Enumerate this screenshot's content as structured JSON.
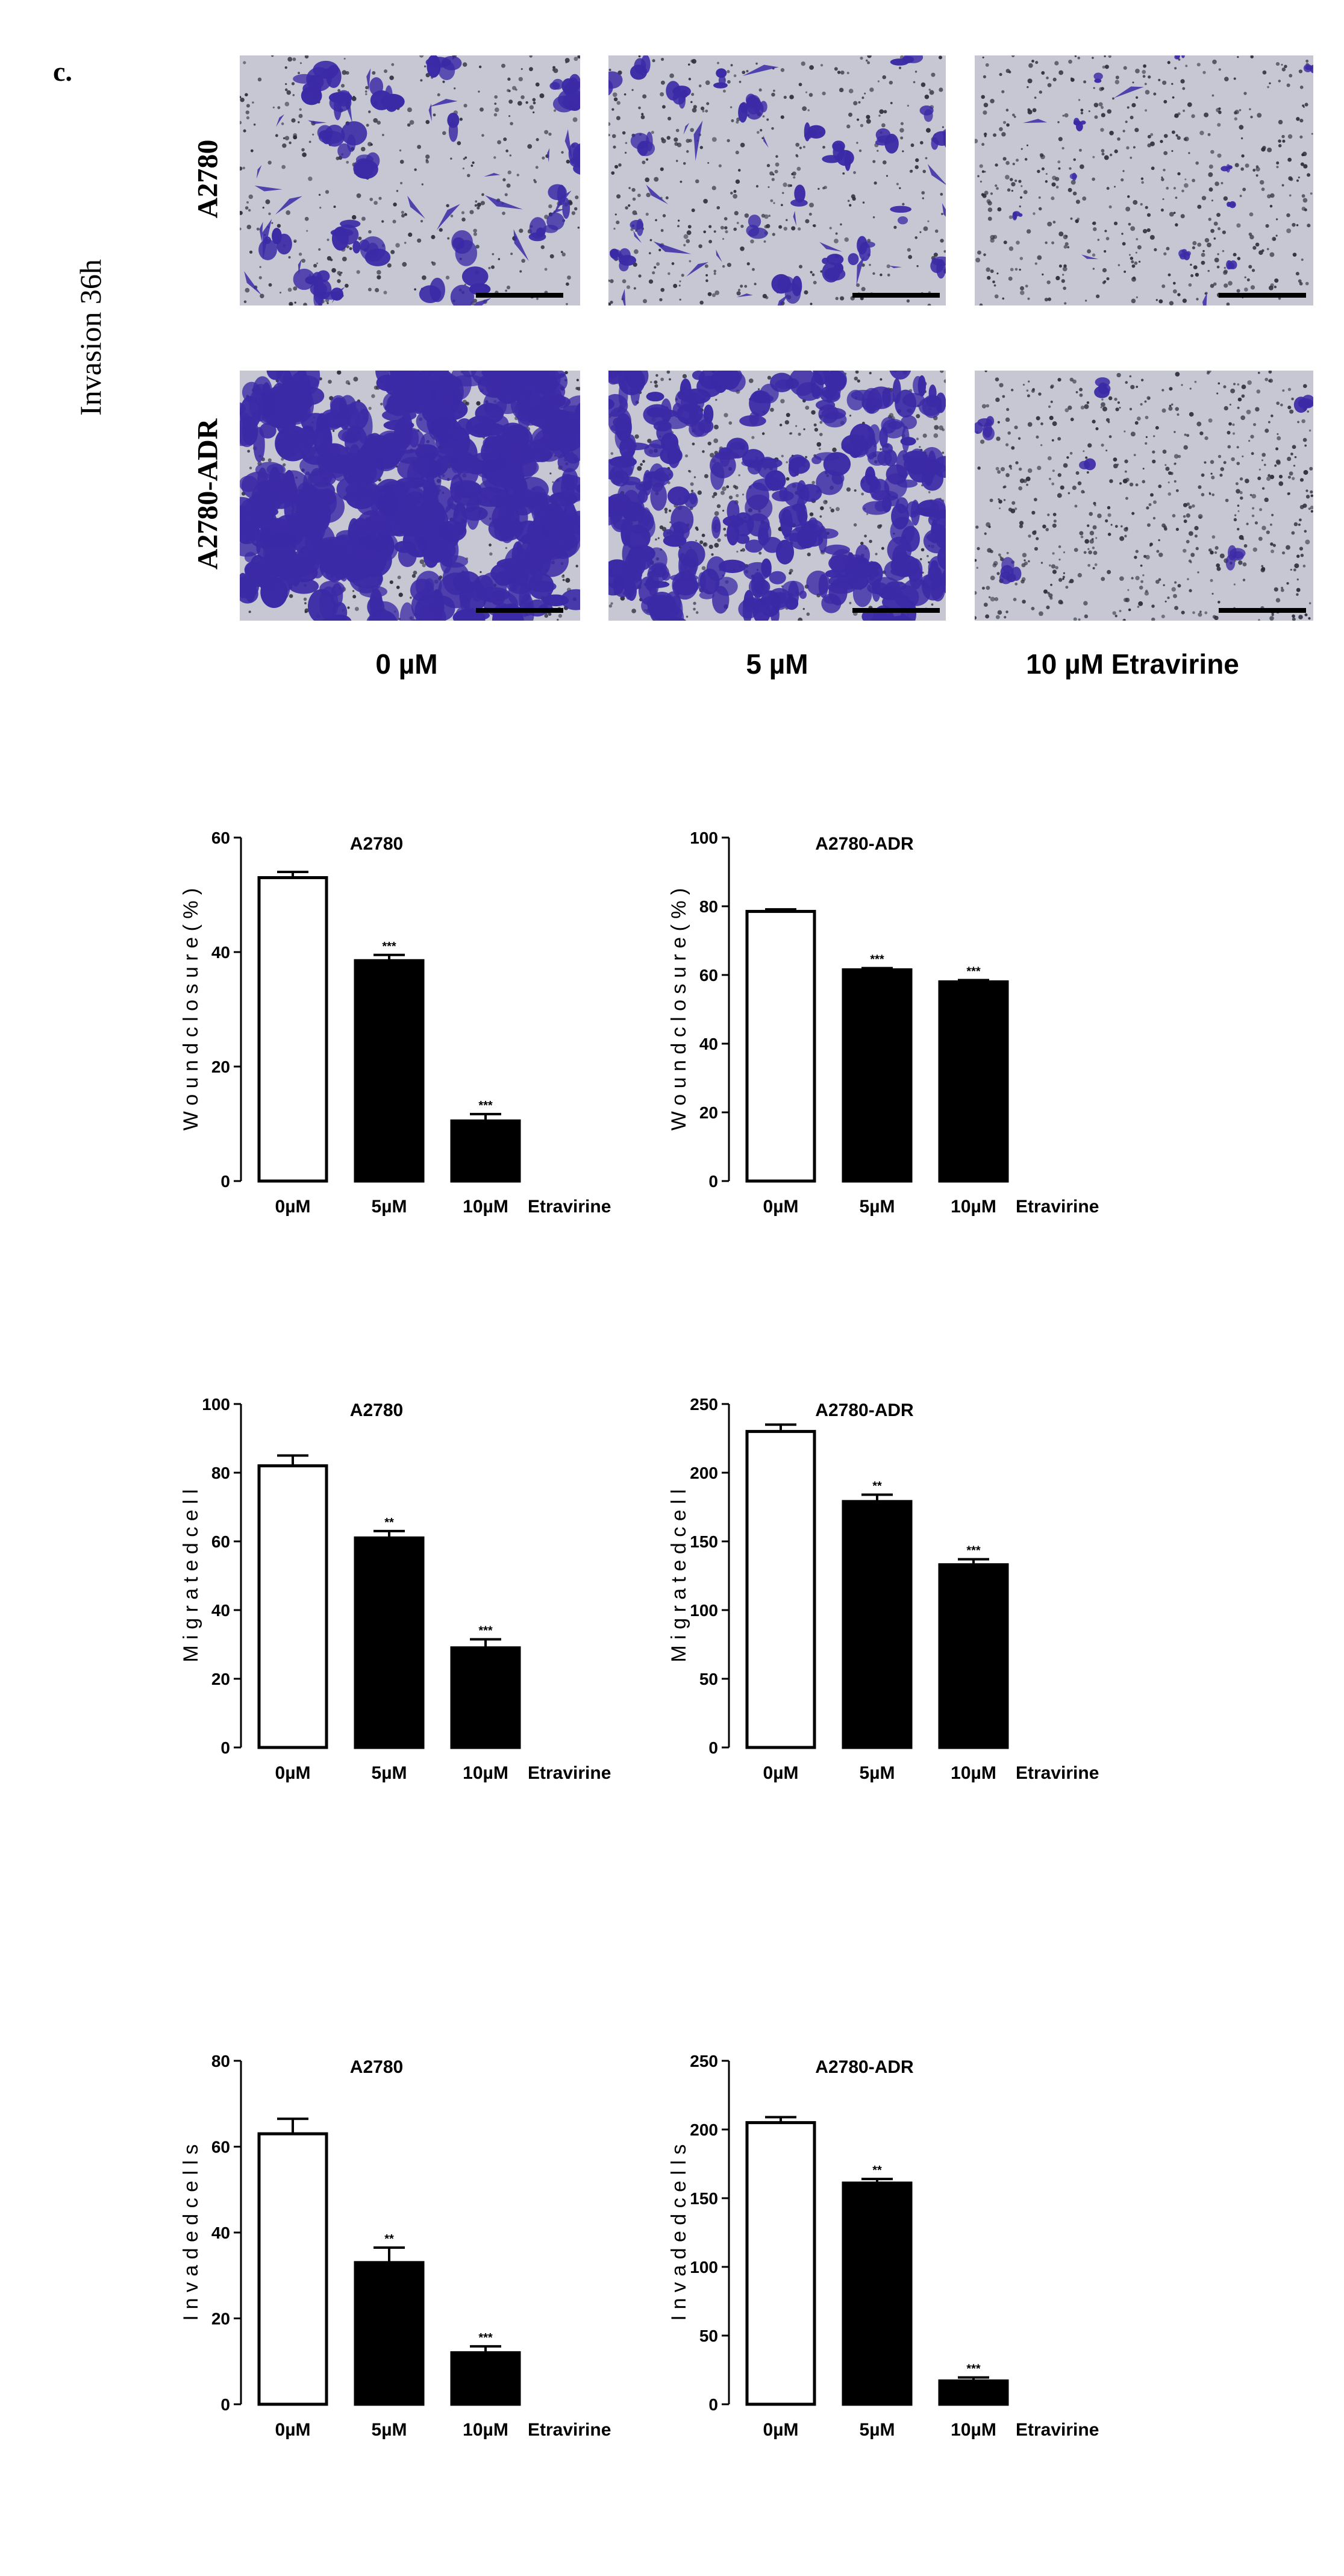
{
  "figure": {
    "panel_letter": "c.",
    "row_heading": "Invasion 36h",
    "rows": [
      {
        "label": "A2780"
      },
      {
        "label": "A2780-ADR"
      }
    ],
    "conditions": [
      {
        "label": "0 µM"
      },
      {
        "label": "5 µM"
      },
      {
        "label": "10 µM Etravirine"
      }
    ],
    "stain_color": "#3b2aa6",
    "background_color": "#c6c7d3"
  },
  "chart_data": [
    {
      "type": "bar",
      "title": "A2780",
      "ylabel": "W o u n d  c l o s u r e  ( % )",
      "xlabel": "",
      "x_suffix": "Etravirine",
      "categories": [
        "0µM",
        "5µM",
        "10µM"
      ],
      "values": [
        53,
        38.5,
        10.5
      ],
      "errors": [
        1,
        1,
        1.2
      ],
      "significance": [
        "",
        "***",
        "***"
      ],
      "bar_fills": [
        "#ffffff",
        "#000000",
        "#000000"
      ],
      "ylim": [
        0,
        60
      ],
      "yticks": [
        0,
        20,
        40,
        60
      ],
      "grid": false
    },
    {
      "type": "bar",
      "title": "A2780-ADR",
      "ylabel": "W o u n d  c l o s u r e  ( % )",
      "xlabel": "",
      "x_suffix": "Etravirine",
      "categories": [
        "0µM",
        "5µM",
        "10µM"
      ],
      "values": [
        78.5,
        61.5,
        58
      ],
      "errors": [
        0.6,
        0.5,
        0.5
      ],
      "significance": [
        "",
        "***",
        "***"
      ],
      "bar_fills": [
        "#ffffff",
        "#000000",
        "#000000"
      ],
      "ylim": [
        0,
        100
      ],
      "yticks": [
        0,
        20,
        40,
        60,
        80,
        100
      ],
      "grid": false
    },
    {
      "type": "bar",
      "title": "A2780",
      "ylabel": "M i g r a t e d  c e l l",
      "xlabel": "",
      "x_suffix": "Etravirine",
      "categories": [
        "0µM",
        "5µM",
        "10µM"
      ],
      "values": [
        82,
        61,
        29
      ],
      "errors": [
        3,
        2,
        2.5
      ],
      "significance": [
        "",
        "**",
        "***"
      ],
      "bar_fills": [
        "#ffffff",
        "#000000",
        "#000000"
      ],
      "ylim": [
        0,
        100
      ],
      "yticks": [
        0,
        20,
        40,
        60,
        80,
        100
      ],
      "grid": false
    },
    {
      "type": "bar",
      "title": "A2780-ADR",
      "ylabel": "M i g r a t e d  c e l l",
      "xlabel": "",
      "x_suffix": "Etravirine",
      "categories": [
        "0µM",
        "5µM",
        "10µM"
      ],
      "values": [
        230,
        179,
        133
      ],
      "errors": [
        5,
        5,
        4
      ],
      "significance": [
        "",
        "**",
        "***"
      ],
      "bar_fills": [
        "#ffffff",
        "#000000",
        "#000000"
      ],
      "ylim": [
        0,
        250
      ],
      "yticks": [
        0,
        50,
        100,
        150,
        200,
        250
      ],
      "grid": false
    },
    {
      "type": "bar",
      "title": "A2780",
      "ylabel": "I n v a d e d  c e l l s",
      "xlabel": "",
      "x_suffix": "Etravirine",
      "categories": [
        "0µM",
        "5µM",
        "10µM"
      ],
      "values": [
        63,
        33,
        12
      ],
      "errors": [
        3.5,
        3.5,
        1.5
      ],
      "significance": [
        "",
        "**",
        "***"
      ],
      "bar_fills": [
        "#ffffff",
        "#000000",
        "#000000"
      ],
      "ylim": [
        0,
        80
      ],
      "yticks": [
        0,
        20,
        40,
        60,
        80
      ],
      "grid": false
    },
    {
      "type": "bar",
      "title": "A2780-ADR",
      "ylabel": "I n v a d e d  c e l l s",
      "xlabel": "",
      "x_suffix": "Etravirine",
      "categories": [
        "0µM",
        "5µM",
        "10µM"
      ],
      "values": [
        205,
        161,
        17
      ],
      "errors": [
        4,
        3,
        2.5
      ],
      "significance": [
        "",
        "**",
        "***"
      ],
      "bar_fills": [
        "#ffffff",
        "#000000",
        "#000000"
      ],
      "ylim": [
        0,
        250
      ],
      "yticks": [
        0,
        50,
        100,
        150,
        200,
        250
      ],
      "grid": false
    }
  ]
}
